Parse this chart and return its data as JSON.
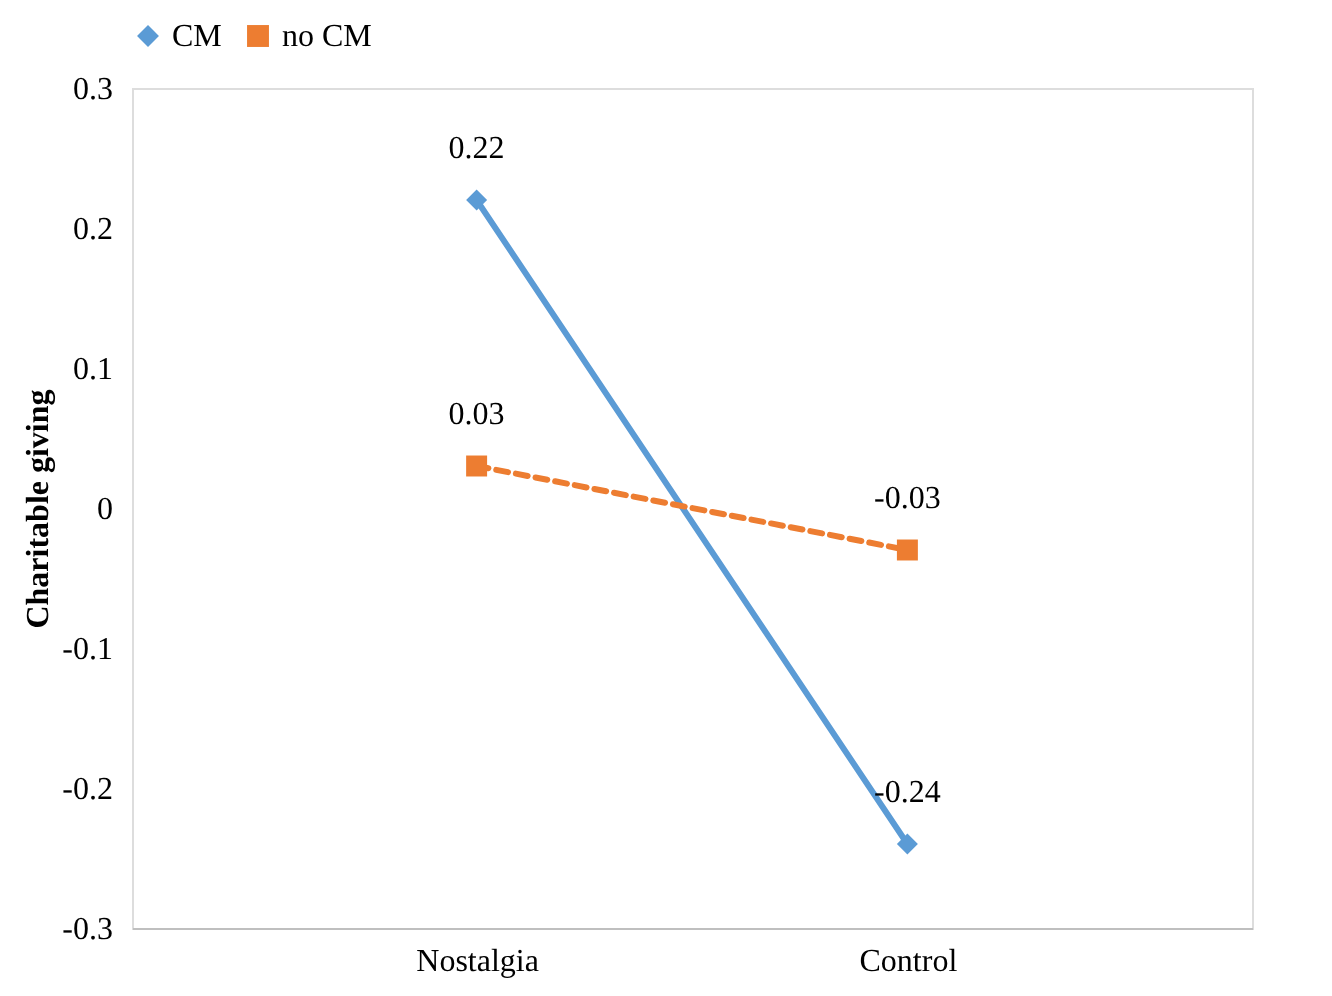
{
  "chart_data": {
    "type": "line",
    "ylabel": "Charitable giving",
    "categories": [
      "Nostalgia",
      "Control"
    ],
    "series": [
      {
        "name": "CM",
        "color": "#5b9bd5",
        "values": [
          0.22,
          -0.24
        ],
        "marker": "diamond",
        "line_style": "solid"
      },
      {
        "name": "no CM",
        "color": "#ed7d31",
        "values": [
          0.03,
          -0.03
        ],
        "marker": "square",
        "line_style": "dashed"
      }
    ],
    "ylim": [
      -0.3,
      0.3
    ],
    "yticks": [
      -0.3,
      -0.2,
      -0.1,
      0,
      0.1,
      0.2,
      0.3
    ],
    "grid": false,
    "legend": "top",
    "data_labels": true
  }
}
